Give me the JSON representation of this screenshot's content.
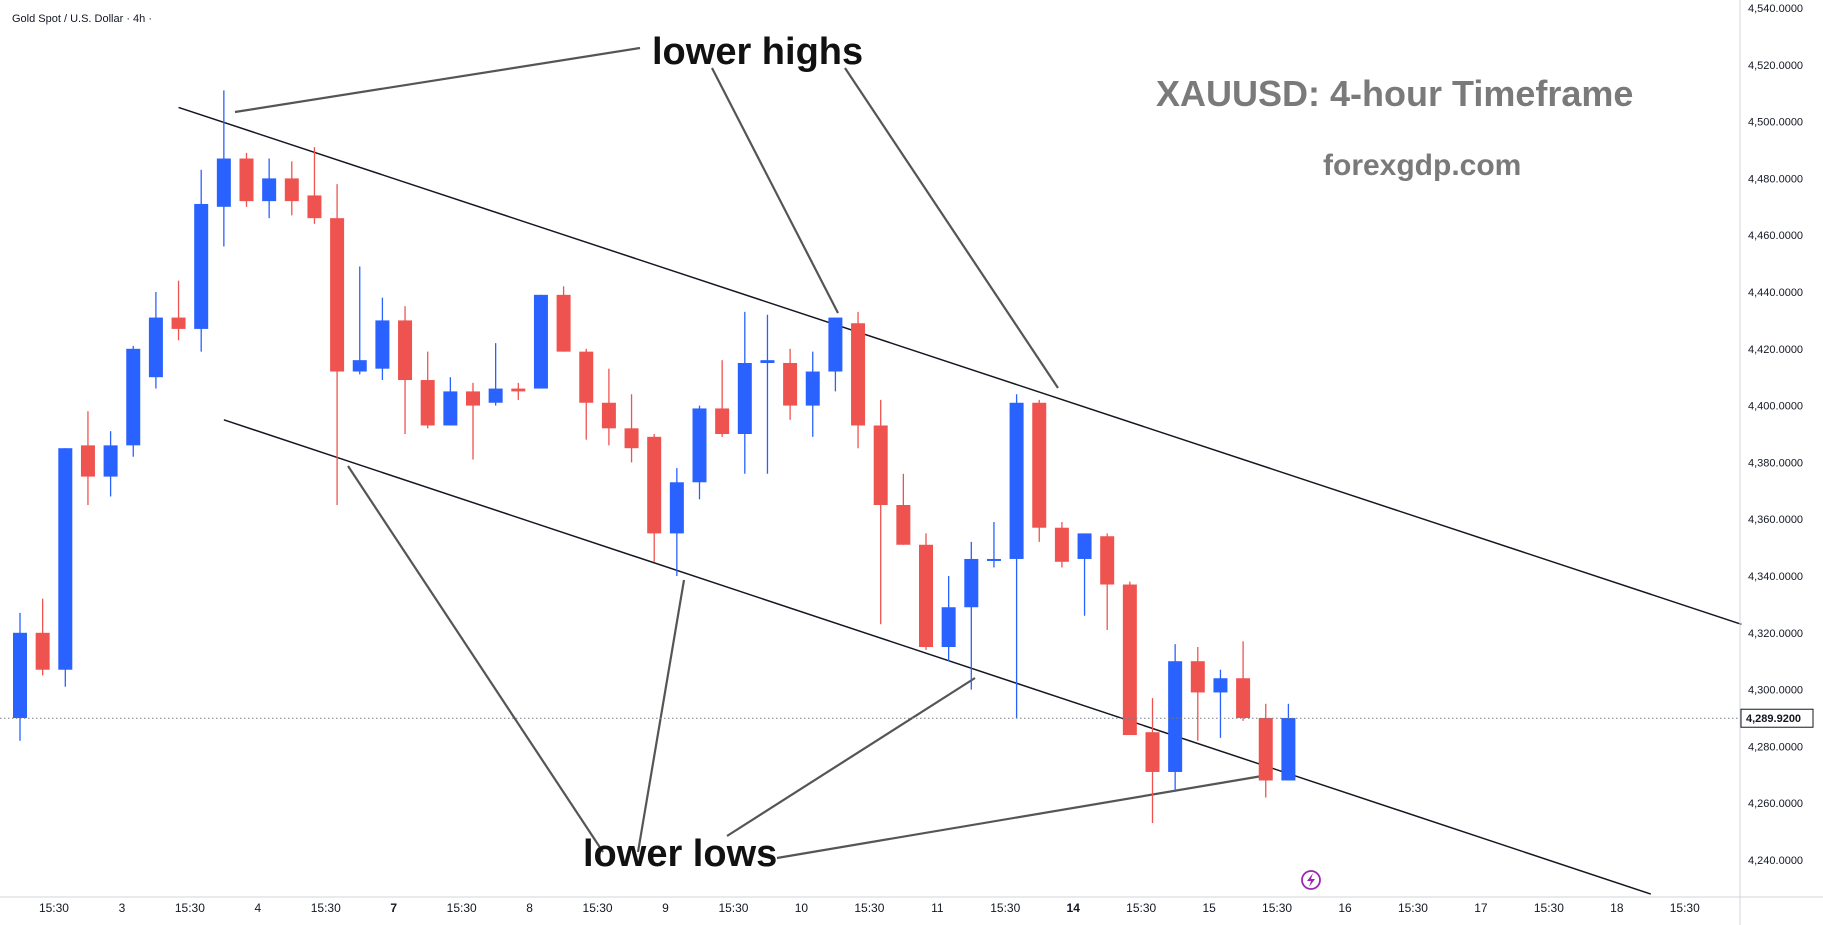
{
  "symbol_title": "Gold Spot / U.S. Dollar · 4h ·",
  "annotations": {
    "lower_highs": "lower highs",
    "lower_lows": "lower lows",
    "timeframe": "XAUUSD: 4-hour Timeframe",
    "website": "forexgdp.com"
  },
  "colors": {
    "up": "#2962ff",
    "down": "#ef5350",
    "trendline": "#131722",
    "pointer": "#555555",
    "flash_icon": "#9c27b0"
  },
  "current_price": {
    "value": 4289.92,
    "label": "4,289.9200"
  },
  "chart_data": {
    "type": "candlestick",
    "title": "XAUUSD: 4-hour Timeframe",
    "y_axis": {
      "min": 4230,
      "max": 4540,
      "step": 20,
      "tick_labels": [
        "4,240.0000",
        "4,260.0000",
        "4,280.0000",
        "4,300.0000",
        "4,320.0000",
        "4,340.0000",
        "4,360.0000",
        "4,380.0000",
        "4,400.0000",
        "4,420.0000",
        "4,440.0000",
        "4,460.0000",
        "4,480.0000",
        "4,500.0000",
        "4,520.0000",
        "4,540.0000"
      ]
    },
    "x_axis": {
      "labels": [
        {
          "text": "15:30",
          "bold": false,
          "bar": 1.5
        },
        {
          "text": "3",
          "bold": false,
          "bar": 4.5
        },
        {
          "text": "15:30",
          "bold": false,
          "bar": 7.5
        },
        {
          "text": "4",
          "bold": false,
          "bar": 10.5
        },
        {
          "text": "15:30",
          "bold": false,
          "bar": 13.5
        },
        {
          "text": "7",
          "bold": true,
          "bar": 16.5
        },
        {
          "text": "15:30",
          "bold": false,
          "bar": 19.5
        },
        {
          "text": "8",
          "bold": false,
          "bar": 22.5
        },
        {
          "text": "15:30",
          "bold": false,
          "bar": 25.5
        },
        {
          "text": "9",
          "bold": false,
          "bar": 28.5
        },
        {
          "text": "15:30",
          "bold": false,
          "bar": 31.5
        },
        {
          "text": "10",
          "bold": false,
          "bar": 34.5
        },
        {
          "text": "15:30",
          "bold": false,
          "bar": 37.5
        },
        {
          "text": "11",
          "bold": false,
          "bar": 40.5
        },
        {
          "text": "15:30",
          "bold": false,
          "bar": 43.5
        },
        {
          "text": "14",
          "bold": true,
          "bar": 46.5
        },
        {
          "text": "15:30",
          "bold": false,
          "bar": 49.5
        },
        {
          "text": "15",
          "bold": false,
          "bar": 52.5
        },
        {
          "text": "15:30",
          "bold": false,
          "bar": 55.5
        },
        {
          "text": "16",
          "bold": false,
          "bar": 58.5
        },
        {
          "text": "15:30",
          "bold": false,
          "bar": 61.5
        },
        {
          "text": "17",
          "bold": false,
          "bar": 64.5
        },
        {
          "text": "15:30",
          "bold": false,
          "bar": 67.5
        },
        {
          "text": "18",
          "bold": false,
          "bar": 70.5
        },
        {
          "text": "15:30",
          "bold": false,
          "bar": 73.5
        }
      ]
    },
    "candles": [
      {
        "o": 4290,
        "h": 4327,
        "l": 4282,
        "c": 4320
      },
      {
        "o": 4320,
        "h": 4332,
        "l": 4305,
        "c": 4307
      },
      {
        "o": 4307,
        "h": 4385,
        "l": 4301,
        "c": 4385
      },
      {
        "o": 4386,
        "h": 4398,
        "l": 4365,
        "c": 4375
      },
      {
        "o": 4375,
        "h": 4391,
        "l": 4368,
        "c": 4386
      },
      {
        "o": 4386,
        "h": 4421,
        "l": 4382,
        "c": 4420
      },
      {
        "o": 4410,
        "h": 4440,
        "l": 4406,
        "c": 4431
      },
      {
        "o": 4431,
        "h": 4444,
        "l": 4423,
        "c": 4427
      },
      {
        "o": 4427,
        "h": 4483,
        "l": 4419,
        "c": 4471
      },
      {
        "o": 4470,
        "h": 4511,
        "l": 4456,
        "c": 4487
      },
      {
        "o": 4487,
        "h": 4489,
        "l": 4470,
        "c": 4472
      },
      {
        "o": 4472,
        "h": 4487,
        "l": 4466,
        "c": 4480
      },
      {
        "o": 4480,
        "h": 4486,
        "l": 4467,
        "c": 4472
      },
      {
        "o": 4474,
        "h": 4491,
        "l": 4464,
        "c": 4466
      },
      {
        "o": 4466,
        "h": 4478,
        "l": 4365,
        "c": 4412
      },
      {
        "o": 4412,
        "h": 4449,
        "l": 4411,
        "c": 4416
      },
      {
        "o": 4413,
        "h": 4438,
        "l": 4409,
        "c": 4430
      },
      {
        "o": 4430,
        "h": 4435,
        "l": 4390,
        "c": 4409
      },
      {
        "o": 4409,
        "h": 4419,
        "l": 4392,
        "c": 4393
      },
      {
        "o": 4393,
        "h": 4410,
        "l": 4393,
        "c": 4405
      },
      {
        "o": 4405,
        "h": 4408,
        "l": 4381,
        "c": 4400
      },
      {
        "o": 4401,
        "h": 4422,
        "l": 4400,
        "c": 4406
      },
      {
        "o": 4406,
        "h": 4408,
        "l": 4402,
        "c": 4405
      },
      {
        "o": 4406,
        "h": 4439,
        "l": 4406,
        "c": 4439
      },
      {
        "o": 4439,
        "h": 4442,
        "l": 4419,
        "c": 4419
      },
      {
        "o": 4419,
        "h": 4420,
        "l": 4388,
        "c": 4401
      },
      {
        "o": 4401,
        "h": 4413,
        "l": 4386,
        "c": 4392
      },
      {
        "o": 4392,
        "h": 4404,
        "l": 4380,
        "c": 4385
      },
      {
        "o": 4389,
        "h": 4390,
        "l": 4345,
        "c": 4355
      },
      {
        "o": 4355,
        "h": 4378,
        "l": 4340,
        "c": 4373
      },
      {
        "o": 4373,
        "h": 4400,
        "l": 4367,
        "c": 4399
      },
      {
        "o": 4399,
        "h": 4416,
        "l": 4389,
        "c": 4390
      },
      {
        "o": 4390,
        "h": 4433,
        "l": 4376,
        "c": 4415
      },
      {
        "o": 4415,
        "h": 4432,
        "l": 4376,
        "c": 4416
      },
      {
        "o": 4415,
        "h": 4420,
        "l": 4395,
        "c": 4400
      },
      {
        "o": 4400,
        "h": 4419,
        "l": 4389,
        "c": 4412
      },
      {
        "o": 4412,
        "h": 4431,
        "l": 4405,
        "c": 4431
      },
      {
        "o": 4429,
        "h": 4433,
        "l": 4385,
        "c": 4393
      },
      {
        "o": 4393,
        "h": 4402,
        "l": 4323,
        "c": 4365
      },
      {
        "o": 4365,
        "h": 4376,
        "l": 4351,
        "c": 4351
      },
      {
        "o": 4351,
        "h": 4355,
        "l": 4314,
        "c": 4315
      },
      {
        "o": 4315,
        "h": 4340,
        "l": 4310,
        "c": 4329
      },
      {
        "o": 4329,
        "h": 4352,
        "l": 4300,
        "c": 4346
      },
      {
        "o": 4346,
        "h": 4359,
        "l": 4343,
        "c": 4346
      },
      {
        "o": 4346,
        "h": 4404,
        "l": 4290,
        "c": 4401
      },
      {
        "o": 4401,
        "h": 4402,
        "l": 4352,
        "c": 4357
      },
      {
        "o": 4357,
        "h": 4359,
        "l": 4343,
        "c": 4345
      },
      {
        "o": 4346,
        "h": 4355,
        "l": 4326,
        "c": 4355
      },
      {
        "o": 4354,
        "h": 4355,
        "l": 4321,
        "c": 4337
      },
      {
        "o": 4337,
        "h": 4338,
        "l": 4284,
        "c": 4284
      },
      {
        "o": 4285,
        "h": 4297,
        "l": 4253,
        "c": 4271
      },
      {
        "o": 4271,
        "h": 4316,
        "l": 4264,
        "c": 4310
      },
      {
        "o": 4310,
        "h": 4315,
        "l": 4282,
        "c": 4299
      },
      {
        "o": 4299,
        "h": 4307,
        "l": 4283,
        "c": 4304
      },
      {
        "o": 4304,
        "h": 4317,
        "l": 4289,
        "c": 4290
      },
      {
        "o": 4290,
        "h": 4295,
        "l": 4262,
        "c": 4268
      },
      {
        "o": 4268,
        "h": 4295,
        "l": 4268,
        "c": 4290
      }
    ],
    "trendlines": [
      {
        "name": "upper-channel",
        "b1": 7.0,
        "p1": 4505,
        "b2": 76.0,
        "p2": 4323
      },
      {
        "name": "lower-channel",
        "b1": 9.0,
        "p1": 4395,
        "b2": 72.0,
        "p2": 4228
      }
    ]
  }
}
